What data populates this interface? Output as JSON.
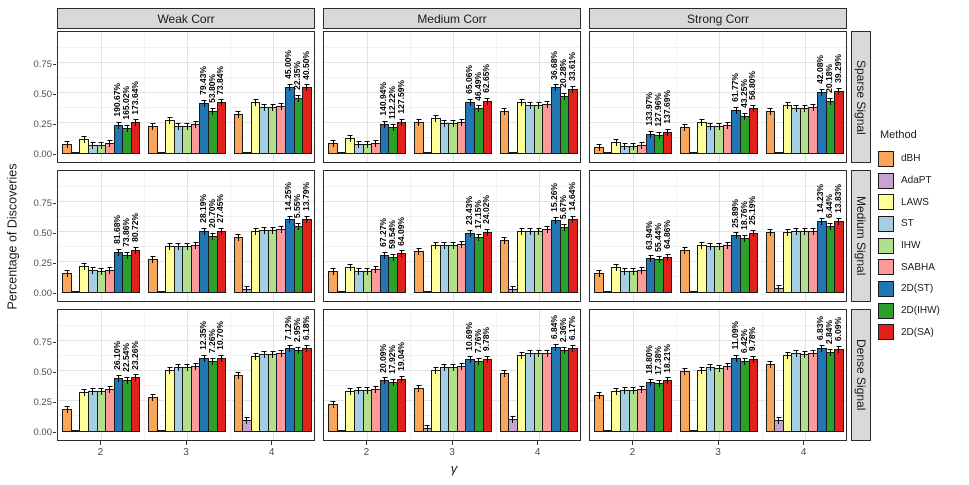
{
  "axes": {
    "y_label": "Percentage of Discoveries",
    "x_label": "γ",
    "y_ticks": [
      "0.00",
      "0.25",
      "0.50",
      "0.75"
    ],
    "x_ticks": [
      "2",
      "3",
      "4"
    ]
  },
  "legend": {
    "title": "Method",
    "items": [
      {
        "label": "dBH",
        "color": "#F9A65A"
      },
      {
        "label": "AdaPT",
        "color": "#C6A4CE"
      },
      {
        "label": "LAWS",
        "color": "#FFFF99"
      },
      {
        "label": "ST",
        "color": "#A6CEE3"
      },
      {
        "label": "IHW",
        "color": "#B2DF8A"
      },
      {
        "label": "SABHA",
        "color": "#FB9A99"
      },
      {
        "label": "2D(ST)",
        "color": "#2077B4"
      },
      {
        "label": "2D(IHW)",
        "color": "#2CA02C"
      },
      {
        "label": "2D(SA)",
        "color": "#E3211C"
      }
    ]
  },
  "chart_data": {
    "type": "bar",
    "facet_cols": [
      "Weak Corr",
      "Medium Corr",
      "Strong Corr"
    ],
    "facet_rows": [
      "Sparse Signal",
      "Medium Signal",
      "Dense Signal"
    ],
    "x": [
      "2",
      "3",
      "4"
    ],
    "methods": [
      "dBH",
      "AdaPT",
      "LAWS",
      "ST",
      "IHW",
      "SABHA",
      "2D(ST)",
      "2D(IHW)",
      "2D(SA)"
    ],
    "ylabel": "Percentage of Discoveries",
    "xlabel": "γ",
    "ylim": [
      0,
      1.0
    ],
    "grid": true,
    "error_bars": true,
    "annotated_methods": [
      "2D(ST)",
      "2D(IHW)",
      "2D(SA)"
    ],
    "panels": [
      {
        "row": "Sparse Signal",
        "col": "Weak Corr",
        "values": [
          [
            0.085,
            0.005,
            0.125,
            0.075,
            0.075,
            0.09,
            0.245,
            0.22,
            0.265
          ],
          [
            0.235,
            0.01,
            0.285,
            0.235,
            0.235,
            0.25,
            0.425,
            0.36,
            0.43
          ],
          [
            0.335,
            0.015,
            0.43,
            0.39,
            0.39,
            0.4,
            0.56,
            0.47,
            0.555
          ]
        ],
        "annotations": [
          [
            "190.67%",
            "165.02%",
            "173.64%"
          ],
          [
            "79.43%",
            "53.80%",
            "73.84%"
          ],
          [
            "45.00%",
            "22.35%",
            "40.50%"
          ]
        ]
      },
      {
        "row": "Sparse Signal",
        "col": "Medium Corr",
        "values": [
          [
            0.09,
            0.005,
            0.13,
            0.08,
            0.08,
            0.095,
            0.25,
            0.225,
            0.27
          ],
          [
            0.265,
            0.01,
            0.3,
            0.26,
            0.26,
            0.27,
            0.435,
            0.38,
            0.44
          ],
          [
            0.36,
            0.015,
            0.435,
            0.41,
            0.41,
            0.42,
            0.555,
            0.485,
            0.545
          ]
        ],
        "annotations": [
          [
            "140.94%",
            "112.22%",
            "127.59%"
          ],
          [
            "65.06%",
            "46.49%",
            "62.65%"
          ],
          [
            "36.68%",
            "20.28%",
            "33.61%"
          ]
        ]
      },
      {
        "row": "Sparse Signal",
        "col": "Strong Corr",
        "values": [
          [
            0.06,
            0.005,
            0.1,
            0.07,
            0.07,
            0.075,
            0.17,
            0.16,
            0.185
          ],
          [
            0.225,
            0.01,
            0.27,
            0.235,
            0.235,
            0.245,
            0.37,
            0.315,
            0.385
          ],
          [
            0.36,
            0.02,
            0.41,
            0.385,
            0.385,
            0.395,
            0.52,
            0.445,
            0.525
          ]
        ],
        "annotations": [
          [
            "133.97%",
            "127.96%",
            "137.69%"
          ],
          [
            "61.77%",
            "43.25%",
            "56.80%"
          ],
          [
            "42.08%",
            "20.18%",
            "39.29%"
          ]
        ]
      },
      {
        "row": "Medium Signal",
        "col": "Weak Corr",
        "values": [
          [
            0.17,
            0.005,
            0.225,
            0.19,
            0.185,
            0.19,
            0.345,
            0.315,
            0.36
          ],
          [
            0.285,
            0.01,
            0.395,
            0.39,
            0.39,
            0.4,
            0.515,
            0.475,
            0.52
          ],
          [
            0.465,
            0.03,
            0.52,
            0.525,
            0.525,
            0.535,
            0.615,
            0.555,
            0.615
          ]
        ],
        "annotations": [
          [
            "81.68%",
            "73.86%",
            "80.72%"
          ],
          [
            "28.19%",
            "20.70%",
            "27.45%"
          ],
          [
            "14.25%",
            "5.55%",
            "13.79%"
          ]
        ]
      },
      {
        "row": "Medium Signal",
        "col": "Medium Corr",
        "values": [
          [
            0.18,
            0.005,
            0.22,
            0.185,
            0.185,
            0.2,
            0.32,
            0.3,
            0.33
          ],
          [
            0.35,
            0.01,
            0.4,
            0.4,
            0.4,
            0.41,
            0.5,
            0.47,
            0.51
          ],
          [
            0.44,
            0.035,
            0.52,
            0.52,
            0.52,
            0.53,
            0.61,
            0.55,
            0.62
          ]
        ],
        "annotations": [
          [
            "67.27%",
            "59.54%",
            "64.09%"
          ],
          [
            "23.43%",
            "17.15%",
            "24.02%"
          ],
          [
            "15.26%",
            "5.67%",
            "14.64%"
          ]
        ]
      },
      {
        "row": "Medium Signal",
        "col": "Strong Corr",
        "values": [
          [
            0.17,
            0.005,
            0.22,
            0.18,
            0.18,
            0.19,
            0.29,
            0.28,
            0.3
          ],
          [
            0.36,
            0.01,
            0.4,
            0.39,
            0.39,
            0.4,
            0.48,
            0.46,
            0.5
          ],
          [
            0.51,
            0.04,
            0.51,
            0.52,
            0.52,
            0.52,
            0.6,
            0.56,
            0.6
          ]
        ],
        "annotations": [
          [
            "63.94%",
            "55.44%",
            "64.86%"
          ],
          [
            "25.89%",
            "18.76%",
            "25.19%"
          ],
          [
            "14.23%",
            "6.44%",
            "13.83%"
          ]
        ]
      },
      {
        "row": "Dense Signal",
        "col": "Weak Corr",
        "values": [
          [
            0.19,
            0.005,
            0.33,
            0.345,
            0.34,
            0.355,
            0.45,
            0.435,
            0.455
          ],
          [
            0.29,
            0.02,
            0.52,
            0.54,
            0.54,
            0.55,
            0.62,
            0.59,
            0.62
          ],
          [
            0.475,
            0.1,
            0.63,
            0.65,
            0.65,
            0.66,
            0.7,
            0.68,
            0.7
          ]
        ],
        "annotations": [
          [
            "26.10%",
            "22.54%",
            "23.26%"
          ],
          [
            "12.35%",
            "7.26%",
            "10.70%"
          ],
          [
            "7.12%",
            "2.95%",
            "6.18%"
          ]
        ]
      },
      {
        "row": "Dense Signal",
        "col": "Medium Corr",
        "values": [
          [
            0.23,
            0.005,
            0.34,
            0.35,
            0.35,
            0.36,
            0.43,
            0.42,
            0.44
          ],
          [
            0.37,
            0.03,
            0.52,
            0.54,
            0.54,
            0.55,
            0.61,
            0.59,
            0.61
          ],
          [
            0.49,
            0.11,
            0.64,
            0.66,
            0.66,
            0.66,
            0.71,
            0.68,
            0.7
          ]
        ],
        "annotations": [
          [
            "20.09%",
            "17.92%",
            "19.04%"
          ],
          [
            "10.69%",
            "7.76%",
            "9.78%"
          ],
          [
            "6.84%",
            "2.36%",
            "6.17%"
          ]
        ]
      },
      {
        "row": "Dense Signal",
        "col": "Strong Corr",
        "values": [
          [
            0.31,
            0.005,
            0.34,
            0.35,
            0.35,
            0.36,
            0.42,
            0.41,
            0.43
          ],
          [
            0.51,
            0.02,
            0.52,
            0.54,
            0.53,
            0.55,
            0.62,
            0.59,
            0.61
          ],
          [
            0.57,
            0.1,
            0.64,
            0.66,
            0.65,
            0.66,
            0.7,
            0.67,
            0.69
          ]
        ],
        "annotations": [
          [
            "18.80%",
            "17.38%",
            "18.21%"
          ],
          [
            "11.09%",
            "6.42%",
            "9.78%"
          ],
          [
            "6.83%",
            "2.84%",
            "6.09%"
          ]
        ]
      }
    ]
  }
}
